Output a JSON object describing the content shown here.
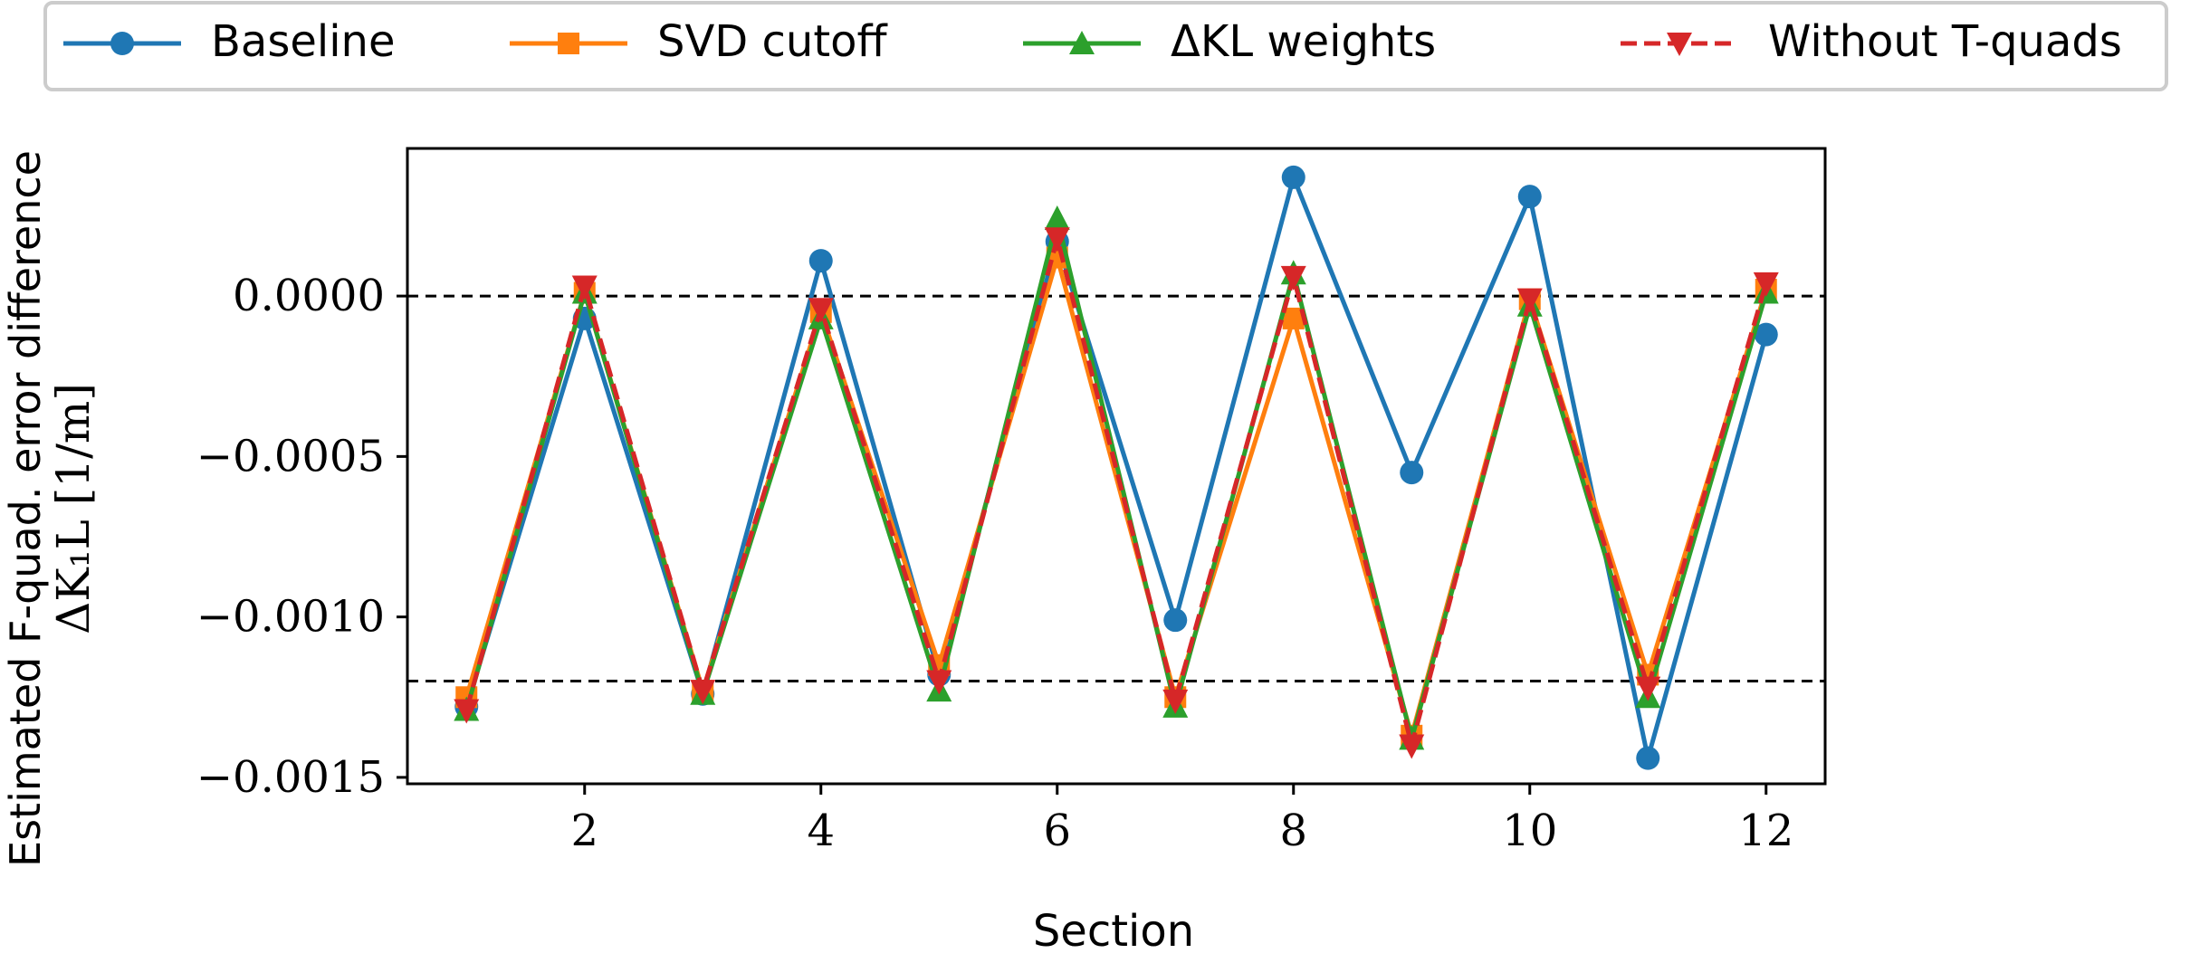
{
  "chart_data": {
    "type": "line",
    "title": "",
    "xlabel": "Section",
    "ylabel_line1": "Estimated F-quad. error difference",
    "ylabel_line2": "ΔK₁L [1/m]",
    "xlim": [
      0.5,
      12.5
    ],
    "ylim": [
      -0.00152,
      0.00046
    ],
    "x_ticks": [
      2,
      4,
      6,
      8,
      10,
      12
    ],
    "x_tick_labels": [
      "2",
      "4",
      "6",
      "8",
      "10",
      "12"
    ],
    "y_ticks": [
      0.0,
      -0.0005,
      -0.001,
      -0.0015
    ],
    "y_tick_labels": [
      "0.0000",
      "−0.0005",
      "−0.0010",
      "−0.0015"
    ],
    "reference_lines": [
      0.0,
      -0.0012
    ],
    "grid": false,
    "legend_placement": "top, outside the axes, spanning full width",
    "x": [
      1,
      2,
      3,
      4,
      5,
      6,
      7,
      8,
      9,
      10,
      11,
      12
    ],
    "series": [
      {
        "name": "Baseline",
        "color": "#1f77b4",
        "marker": "circle",
        "dashed": false,
        "values": [
          -0.00128,
          -7e-05,
          -0.00124,
          0.00011,
          -0.00118,
          0.00017,
          -0.00101,
          0.00037,
          -0.00055,
          0.00031,
          -0.00144,
          -0.00012
        ]
      },
      {
        "name": "SVD cutoff",
        "color": "#ff7f0e",
        "marker": "square",
        "dashed": false,
        "values": [
          -0.00125,
          1e-05,
          -0.00123,
          -5e-05,
          -0.00115,
          0.00012,
          -0.00125,
          -7e-05,
          -0.00137,
          -1e-05,
          -0.00118,
          2e-05
        ]
      },
      {
        "name": "ΔKL weights",
        "color": "#2ca02c",
        "marker": "triangle-up",
        "dashed": false,
        "values": [
          -0.00129,
          1e-05,
          -0.00124,
          -7e-05,
          -0.00123,
          0.00024,
          -0.00128,
          7e-05,
          -0.00138,
          -3e-05,
          -0.00125,
          1e-05
        ]
      },
      {
        "name": "Without T-quads",
        "color": "#d62728",
        "marker": "triangle-down",
        "dashed": true,
        "values": [
          -0.00129,
          3e-05,
          -0.00123,
          -4e-05,
          -0.0012,
          0.00018,
          -0.00126,
          6e-05,
          -0.0014,
          -1e-05,
          -0.00122,
          4e-05
        ]
      }
    ]
  }
}
